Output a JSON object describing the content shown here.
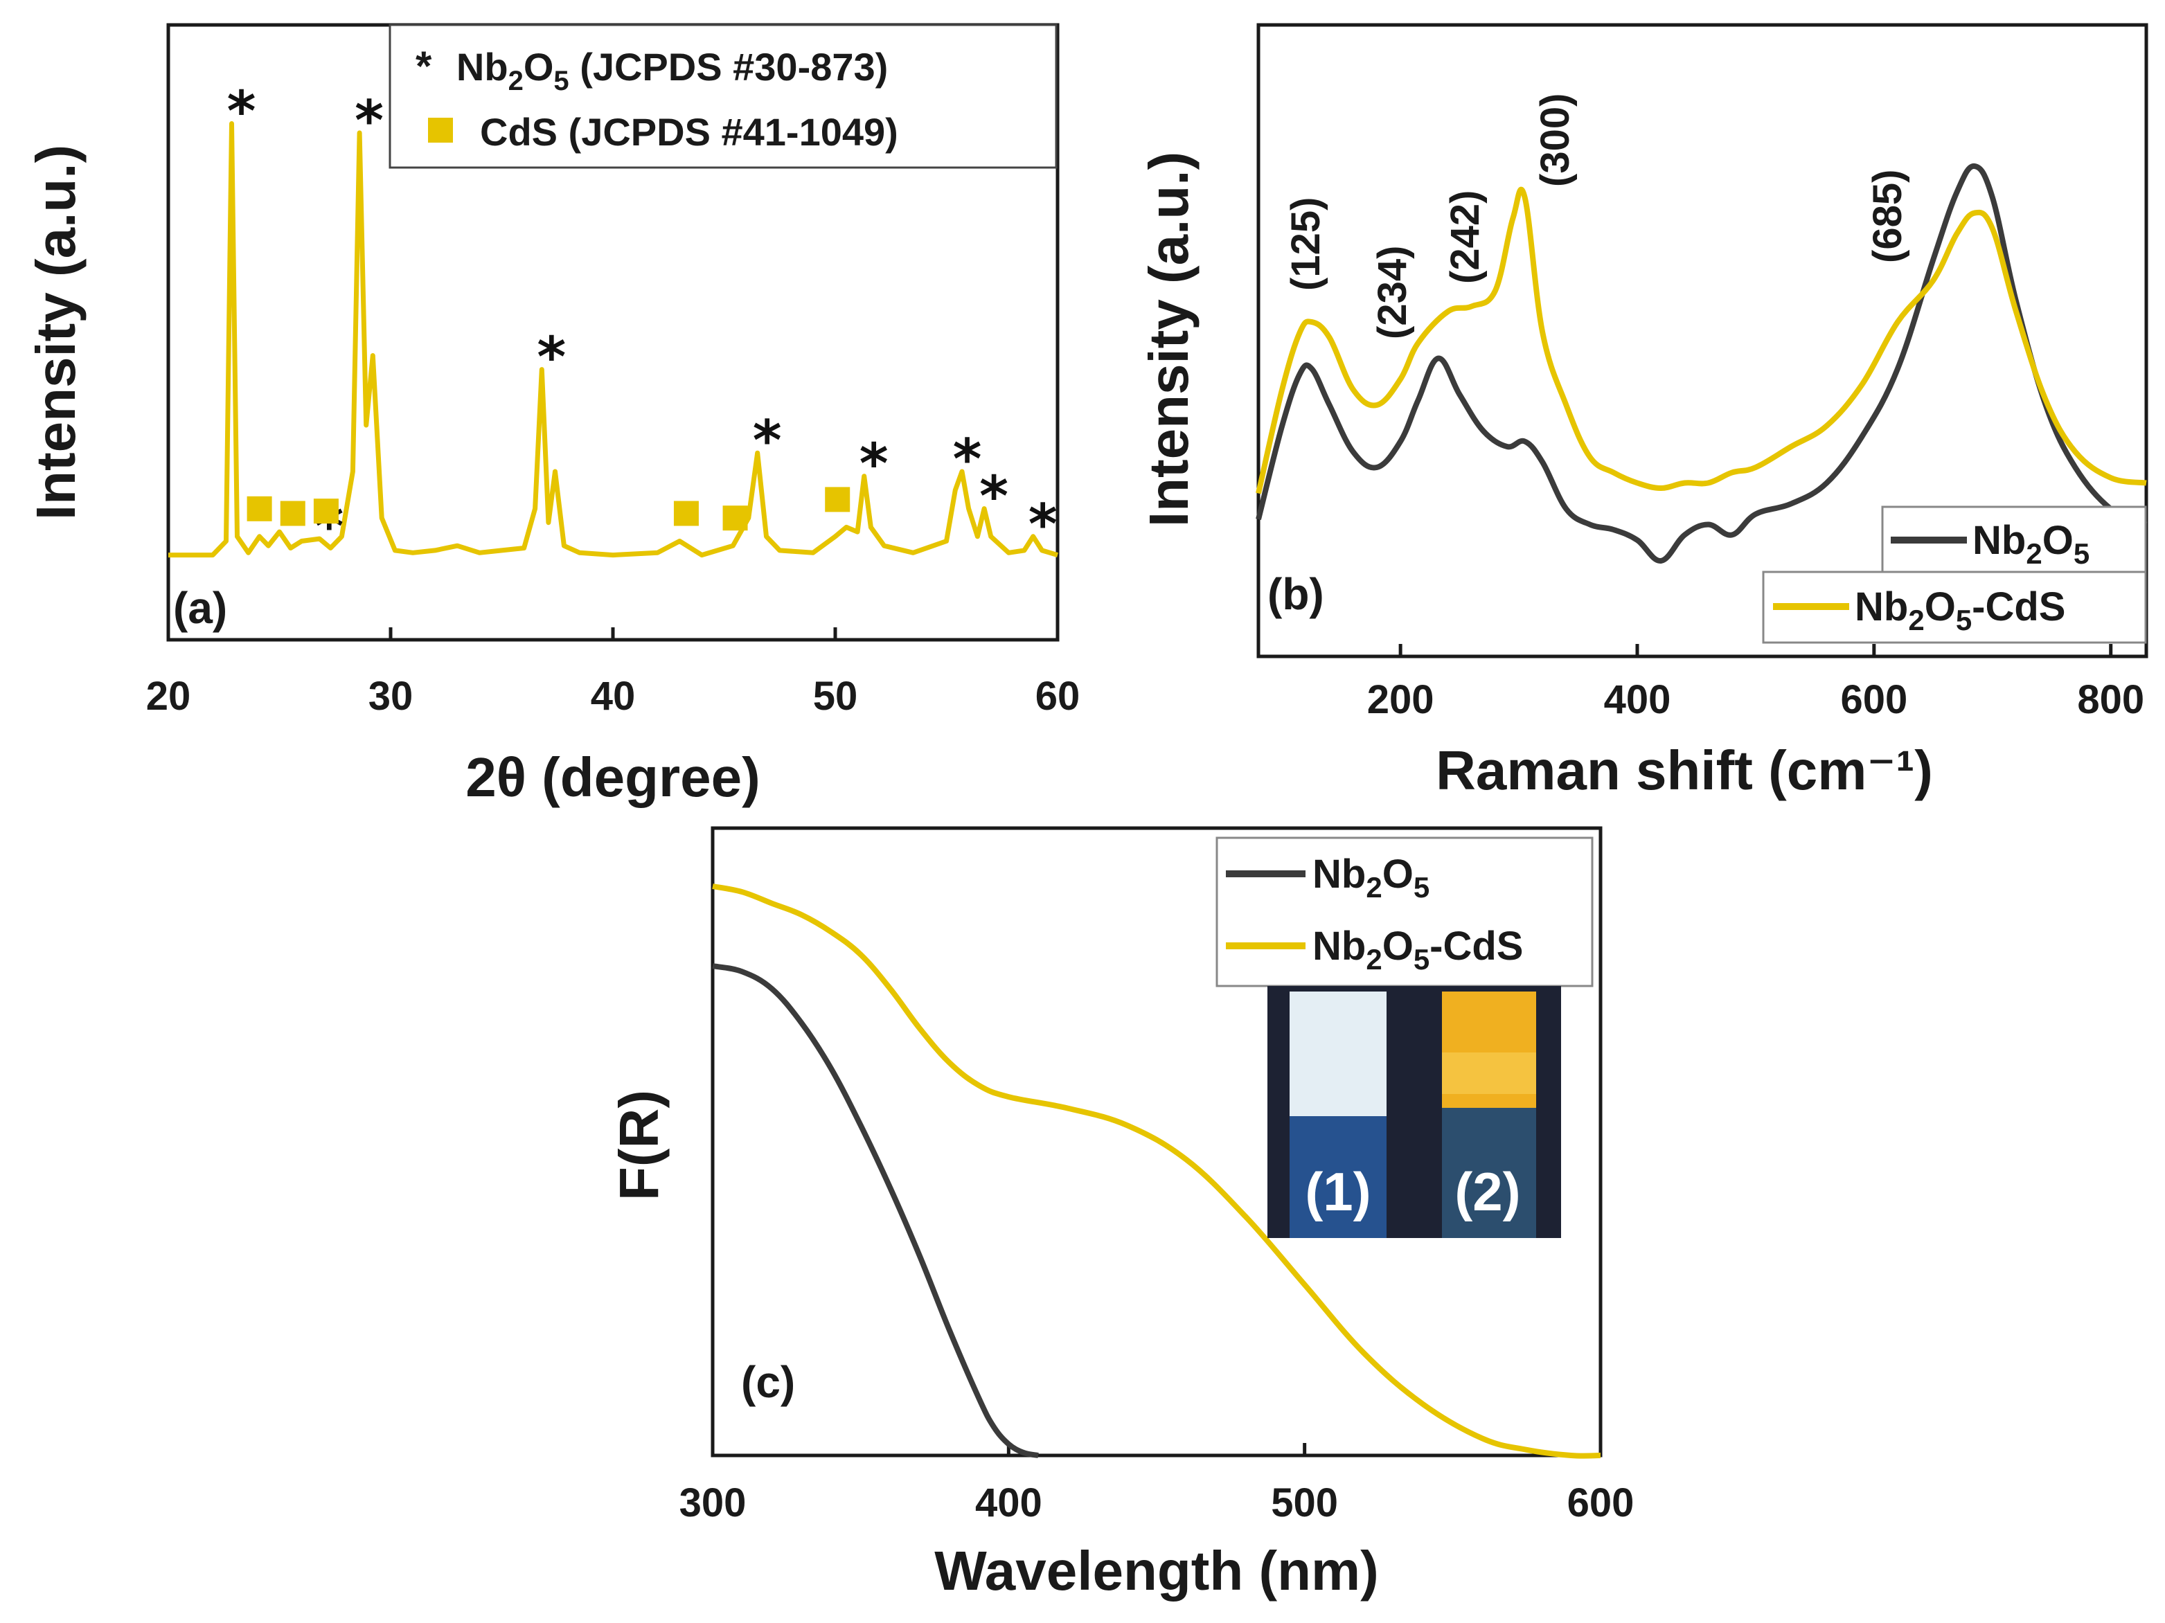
{
  "colors": {
    "nb2o5": "#3b3b3b",
    "nb2o5_cds": "#e6c400",
    "xrd": "#e6c400",
    "cds_marker": "#e6c400",
    "axis": "#1a1a1a"
  },
  "chart_data": [
    {
      "panel": "(a)",
      "type": "line",
      "xlabel": "2θ (degree)",
      "ylabel": "Intensity (a.u.)",
      "xlim": [
        20,
        60
      ],
      "ylim": [
        0,
        1
      ],
      "xticks": [
        "20",
        "30",
        "40",
        "50",
        "60"
      ],
      "legend": {
        "placement": "top",
        "entries": [
          {
            "symbol": "*",
            "label": "Nb2O5 (JCPDS #30-873)"
          },
          {
            "symbol": "square",
            "label": "CdS (JCPDS #41-1049)"
          }
        ]
      },
      "series": [
        {
          "key": "xrd",
          "x": [
            20,
            22.0,
            22.6,
            22.85,
            23.1,
            23.6,
            24.1,
            24.5,
            25.0,
            25.5,
            26.0,
            26.8,
            27.3,
            27.8,
            28.3,
            28.6,
            28.9,
            29.2,
            29.6,
            30.2,
            31.0,
            32.0,
            33.0,
            34.0,
            35.0,
            36.0,
            36.5,
            36.8,
            37.1,
            37.4,
            37.8,
            38.5,
            40.0,
            42.0,
            43.0,
            44.0,
            45.4,
            46.1,
            46.5,
            46.9,
            47.5,
            49.0,
            50.0,
            50.5,
            51.0,
            51.3,
            51.6,
            52.2,
            53.5,
            55.0,
            55.4,
            55.7,
            56.0,
            56.4,
            56.7,
            57.0,
            57.8,
            58.5,
            58.9,
            59.3,
            60
          ],
          "y": [
            0.02,
            0.02,
            0.05,
            0.95,
            0.06,
            0.025,
            0.06,
            0.04,
            0.07,
            0.035,
            0.05,
            0.055,
            0.035,
            0.06,
            0.2,
            0.93,
            0.3,
            0.45,
            0.1,
            0.03,
            0.025,
            0.03,
            0.04,
            0.025,
            0.03,
            0.035,
            0.12,
            0.42,
            0.09,
            0.2,
            0.04,
            0.025,
            0.02,
            0.025,
            0.05,
            0.02,
            0.04,
            0.1,
            0.24,
            0.06,
            0.03,
            0.025,
            0.06,
            0.08,
            0.07,
            0.19,
            0.08,
            0.04,
            0.025,
            0.05,
            0.16,
            0.2,
            0.12,
            0.06,
            0.12,
            0.06,
            0.025,
            0.03,
            0.06,
            0.03,
            0.02
          ]
        }
      ],
      "nb2o5_peaks": [
        22.85,
        26.8,
        28.6,
        36.8,
        46.5,
        51.3,
        55.5,
        56.7,
        58.9
      ],
      "cds_peaks": [
        24.1,
        25.6,
        27.1,
        43.3,
        45.5,
        50.1
      ]
    },
    {
      "panel": "(b)",
      "type": "line",
      "xlabel": "Raman shift (cm⁻¹)",
      "ylabel": "Intensity (a.u.)",
      "xlim": [
        80,
        830
      ],
      "ylim": [
        0,
        1
      ],
      "xticks": [
        "200",
        "400",
        "600",
        "800"
      ],
      "legend": {
        "placement": "bottom-right",
        "entries": [
          "Nb2O5",
          "Nb2O5-CdS"
        ]
      },
      "annotations": [
        "(125)",
        "(234)",
        "(242)",
        "(300)",
        "(685)"
      ],
      "series": [
        {
          "key": "nb2o5",
          "x": [
            80,
            100,
            115,
            125,
            140,
            160,
            180,
            200,
            215,
            232,
            250,
            270,
            290,
            305,
            320,
            340,
            360,
            380,
            400,
            420,
            440,
            460,
            480,
            500,
            530,
            560,
            590,
            620,
            650,
            670,
            685,
            700,
            720,
            745,
            770,
            800,
            830
          ],
          "y": [
            0.2,
            0.38,
            0.48,
            0.49,
            0.42,
            0.33,
            0.3,
            0.35,
            0.43,
            0.51,
            0.44,
            0.37,
            0.34,
            0.35,
            0.31,
            0.22,
            0.19,
            0.18,
            0.16,
            0.12,
            0.17,
            0.19,
            0.17,
            0.21,
            0.23,
            0.27,
            0.36,
            0.49,
            0.7,
            0.83,
            0.88,
            0.82,
            0.62,
            0.42,
            0.3,
            0.22,
            0.19
          ]
        },
        {
          "key": "nb2o5_cds",
          "x": [
            80,
            100,
            115,
            125,
            140,
            160,
            180,
            200,
            215,
            240,
            260,
            280,
            295,
            305,
            320,
            340,
            360,
            380,
            400,
            420,
            440,
            460,
            480,
            500,
            530,
            560,
            590,
            620,
            650,
            670,
            685,
            700,
            720,
            745,
            770,
            800,
            830
          ],
          "y": [
            0.25,
            0.45,
            0.56,
            0.58,
            0.55,
            0.45,
            0.42,
            0.47,
            0.54,
            0.6,
            0.61,
            0.64,
            0.78,
            0.82,
            0.56,
            0.42,
            0.32,
            0.29,
            0.27,
            0.26,
            0.27,
            0.27,
            0.29,
            0.3,
            0.34,
            0.38,
            0.46,
            0.58,
            0.66,
            0.75,
            0.79,
            0.76,
            0.6,
            0.43,
            0.33,
            0.28,
            0.27
          ]
        }
      ]
    },
    {
      "panel": "(c)",
      "type": "line",
      "xlabel": "Wavelength (nm)",
      "ylabel": "F(R)",
      "xlim": [
        300,
        600
      ],
      "ylim": [
        0,
        1
      ],
      "xticks": [
        "300",
        "400",
        "500",
        "600"
      ],
      "legend": {
        "placement": "top-right",
        "entries": [
          "Nb2O5",
          "Nb2O5-CdS"
        ]
      },
      "inset": {
        "description_labels": [
          "(1)",
          "(2)"
        ]
      },
      "series": [
        {
          "key": "nb2o5",
          "x": [
            300,
            310,
            320,
            330,
            340,
            350,
            360,
            370,
            380,
            390,
            395,
            400,
            405,
            410
          ],
          "y": [
            0.86,
            0.85,
            0.82,
            0.76,
            0.68,
            0.58,
            0.47,
            0.35,
            0.22,
            0.1,
            0.05,
            0.02,
            0.005,
            0.0
          ]
        },
        {
          "key": "nb2o5_cds",
          "x": [
            300,
            310,
            320,
            330,
            340,
            350,
            360,
            370,
            380,
            390,
            400,
            420,
            440,
            460,
            480,
            500,
            520,
            540,
            560,
            575,
            590,
            600
          ],
          "y": [
            1.0,
            0.99,
            0.97,
            0.95,
            0.92,
            0.88,
            0.82,
            0.75,
            0.69,
            0.65,
            0.63,
            0.61,
            0.58,
            0.52,
            0.42,
            0.3,
            0.18,
            0.09,
            0.03,
            0.01,
            0.0,
            0.0
          ]
        }
      ]
    }
  ],
  "panel_a": {
    "legend_items": [
      {
        "star": "*",
        "label_nb": "Nb",
        "sub1": "2",
        "label_o": "O",
        "sub2": "5",
        "rest": " (JCPDS #30-873)"
      },
      {
        "label": "CdS (JCPDS #41-1049)"
      }
    ]
  },
  "panel_b": {
    "legend_nb": [
      "Nb",
      "2",
      "O",
      "5"
    ],
    "legend_cds": [
      "Nb",
      "2",
      "O",
      "5",
      "-CdS"
    ]
  },
  "panel_c": {
    "legend_nb": [
      "Nb",
      "2",
      "O",
      "5"
    ],
    "legend_cds": [
      "Nb",
      "2",
      "O",
      "5",
      "-CdS"
    ],
    "inset_labels": [
      "(1)",
      "(2)"
    ]
  }
}
